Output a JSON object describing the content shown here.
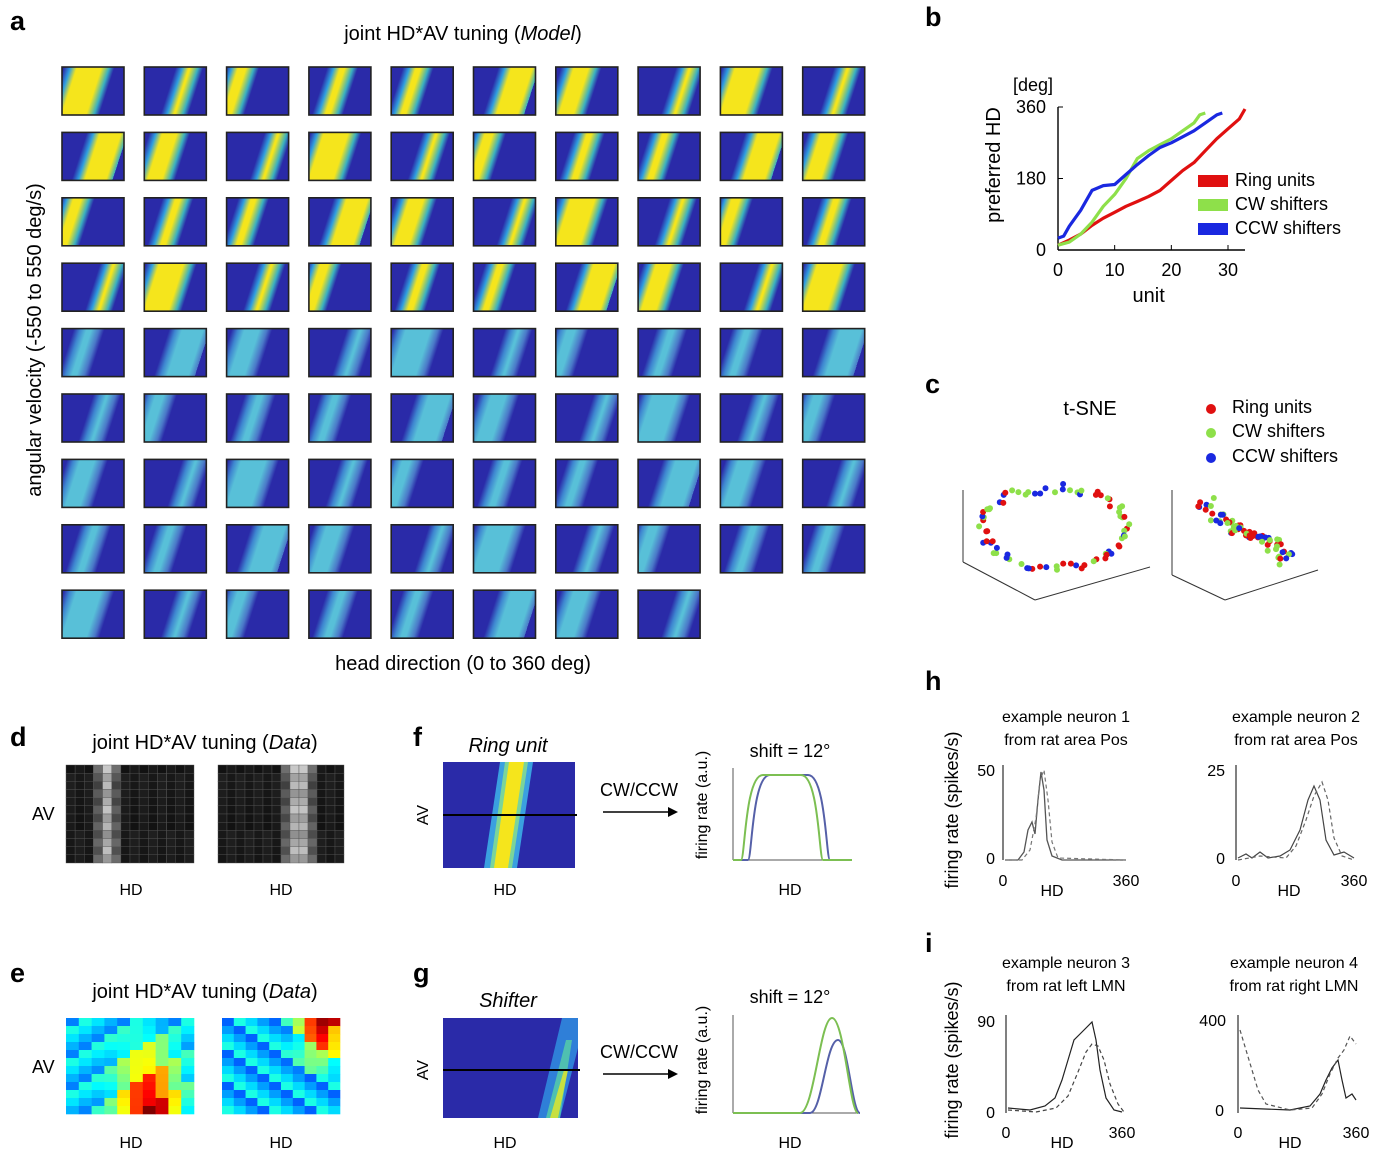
{
  "colors": {
    "tile_blue": "#2a2aa8",
    "tile_yellow": "#f5e51c",
    "ring": "#e01010",
    "cw": "#8ee04a",
    "ccw": "#1a28e0",
    "shift_blue": "#5560a8",
    "shift_green": "#7cbf52"
  },
  "panels": {
    "a": {
      "letter": "a",
      "title_prefix": "joint HD*AV tuning (",
      "title_emph": "Model",
      "title_suffix": ")",
      "ylabel": "angular velocity (-550 to 550 deg/s)",
      "xlabel": "head direction (0 to 360 deg)",
      "tile_rows": [
        10,
        10,
        10,
        10,
        10,
        10,
        10,
        10,
        8
      ]
    },
    "b": {
      "letter": "b"
    },
    "c": {
      "letter": "c",
      "title": "t-SNE",
      "legend": [
        "Ring units",
        "CW shifters",
        "CCW shifters"
      ]
    },
    "d": {
      "letter": "d",
      "title_prefix": "joint HD*AV tuning (",
      "title_emph": "Data",
      "title_suffix": ")",
      "ylabel": "AV",
      "xlabels": [
        "HD",
        "HD"
      ]
    },
    "e": {
      "letter": "e",
      "title_prefix": "joint HD*AV tuning (",
      "title_emph": "Data",
      "title_suffix": ")",
      "ylabel": "AV",
      "xlabels": [
        "HD",
        "HD"
      ]
    },
    "f": {
      "letter": "f",
      "name": "Ring unit",
      "ylabel": "AV",
      "xlabel": "HD",
      "arrow_label": "CW/CCW",
      "shift_label": "shift = 12°",
      "rate_ylabel": "firing rate (a.u.)",
      "rate_xlabel": "HD"
    },
    "g": {
      "letter": "g",
      "name": "Shifter",
      "ylabel": "AV",
      "xlabel": "HD",
      "arrow_label": "CW/CCW",
      "shift_label": "shift = 12°",
      "rate_ylabel": "firing rate (a.u.)",
      "rate_xlabel": "HD"
    },
    "h": {
      "letter": "h",
      "ylabel": "firing rate (spikes/s)",
      "neurons": [
        {
          "title1": "example neuron 1",
          "title2": "from rat area Pos",
          "ymax_label": "50",
          "y0_label": "0",
          "x0_label": "0",
          "x1_label": "360",
          "xlabel": "HD"
        },
        {
          "title1": "example neuron 2",
          "title2": "from rat area Pos",
          "ymax_label": "25",
          "y0_label": "0",
          "x0_label": "0",
          "x1_label": "360",
          "xlabel": "HD"
        }
      ]
    },
    "i": {
      "letter": "i",
      "ylabel": "firing rate (spikes/s)",
      "neurons": [
        {
          "title1": "example neuron 3",
          "title2": "from rat left LMN",
          "ymax_label": "90",
          "y0_label": "0",
          "x0_label": "0",
          "x1_label": "360",
          "xlabel": "HD"
        },
        {
          "title1": "example neuron 4",
          "title2": "from rat right LMN",
          "ymax_label": "400",
          "y0_label": "0",
          "x0_label": "0",
          "x1_label": "360",
          "xlabel": "HD"
        }
      ]
    }
  },
  "chart_data": [
    {
      "type": "line",
      "panel": "b",
      "unit_label": "[deg]",
      "ylabel": "preferred HD",
      "xlabel": "unit",
      "xlim": [
        0,
        33
      ],
      "ylim": [
        0,
        360
      ],
      "xticks": [
        0,
        10,
        20,
        30
      ],
      "yticks": [
        0,
        180,
        360
      ],
      "legend": "right",
      "series": [
        {
          "name": "Ring units",
          "x": [
            0,
            2,
            4,
            6,
            8,
            10,
            12,
            14,
            16,
            18,
            20,
            22,
            24,
            26,
            28,
            30,
            32,
            33
          ],
          "y": [
            12,
            25,
            40,
            62,
            80,
            95,
            110,
            122,
            135,
            150,
            175,
            200,
            220,
            250,
            280,
            305,
            330,
            355
          ]
        },
        {
          "name": "CW shifters",
          "x": [
            0,
            2,
            4,
            6,
            8,
            10,
            12,
            14,
            16,
            18,
            20,
            22,
            24,
            25,
            26
          ],
          "y": [
            12,
            20,
            40,
            70,
            110,
            140,
            180,
            230,
            250,
            265,
            280,
            300,
            320,
            340,
            345
          ]
        },
        {
          "name": "CCW shifters",
          "x": [
            0,
            1,
            2,
            4,
            6,
            8,
            10,
            12,
            14,
            16,
            18,
            20,
            22,
            24,
            26,
            28,
            29
          ],
          "y": [
            30,
            35,
            60,
            100,
            150,
            162,
            165,
            190,
            215,
            238,
            258,
            270,
            285,
            300,
            320,
            340,
            345
          ]
        }
      ]
    },
    {
      "type": "scatter",
      "panel": "c",
      "title": "t-SNE",
      "series": [
        {
          "name": "Ring units"
        },
        {
          "name": "CW shifters"
        },
        {
          "name": "CCW shifters"
        }
      ]
    }
  ]
}
